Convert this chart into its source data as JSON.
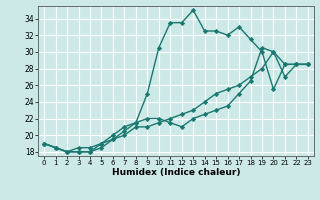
{
  "title": "",
  "xlabel": "Humidex (Indice chaleur)",
  "bg_color": "#cce9e8",
  "grid_color": "#ffffff",
  "line_color": "#1a7870",
  "marker": "D",
  "markersize": 2.2,
  "linewidth": 1.0,
  "xlim": [
    -0.5,
    23.5
  ],
  "ylim": [
    17.5,
    35.5
  ],
  "yticks": [
    18,
    20,
    22,
    24,
    26,
    28,
    30,
    32,
    34
  ],
  "xticks": [
    0,
    1,
    2,
    3,
    4,
    5,
    6,
    7,
    8,
    9,
    10,
    11,
    12,
    13,
    14,
    15,
    16,
    17,
    18,
    19,
    20,
    21,
    22,
    23
  ],
  "series": [
    [
      19,
      18.5,
      18,
      18,
      18,
      18.5,
      19.5,
      20.5,
      21.5,
      22,
      22,
      21.5,
      21,
      22,
      22.5,
      23,
      23.5,
      25,
      26.5,
      30.5,
      30,
      28.5,
      28.5,
      28.5
    ],
    [
      19,
      18.5,
      18,
      18,
      18,
      19,
      20,
      21,
      21.5,
      25,
      30.5,
      33.5,
      33.5,
      35,
      32.5,
      32.5,
      32,
      33,
      31.5,
      30,
      25.5,
      28.5,
      28.5,
      28.5
    ],
    [
      19,
      18.5,
      18,
      18.5,
      18.5,
      19,
      19.5,
      20,
      21,
      21,
      21.5,
      22,
      22.5,
      23,
      24,
      25,
      25.5,
      26,
      27,
      28,
      30,
      27,
      28.5,
      28.5
    ]
  ]
}
